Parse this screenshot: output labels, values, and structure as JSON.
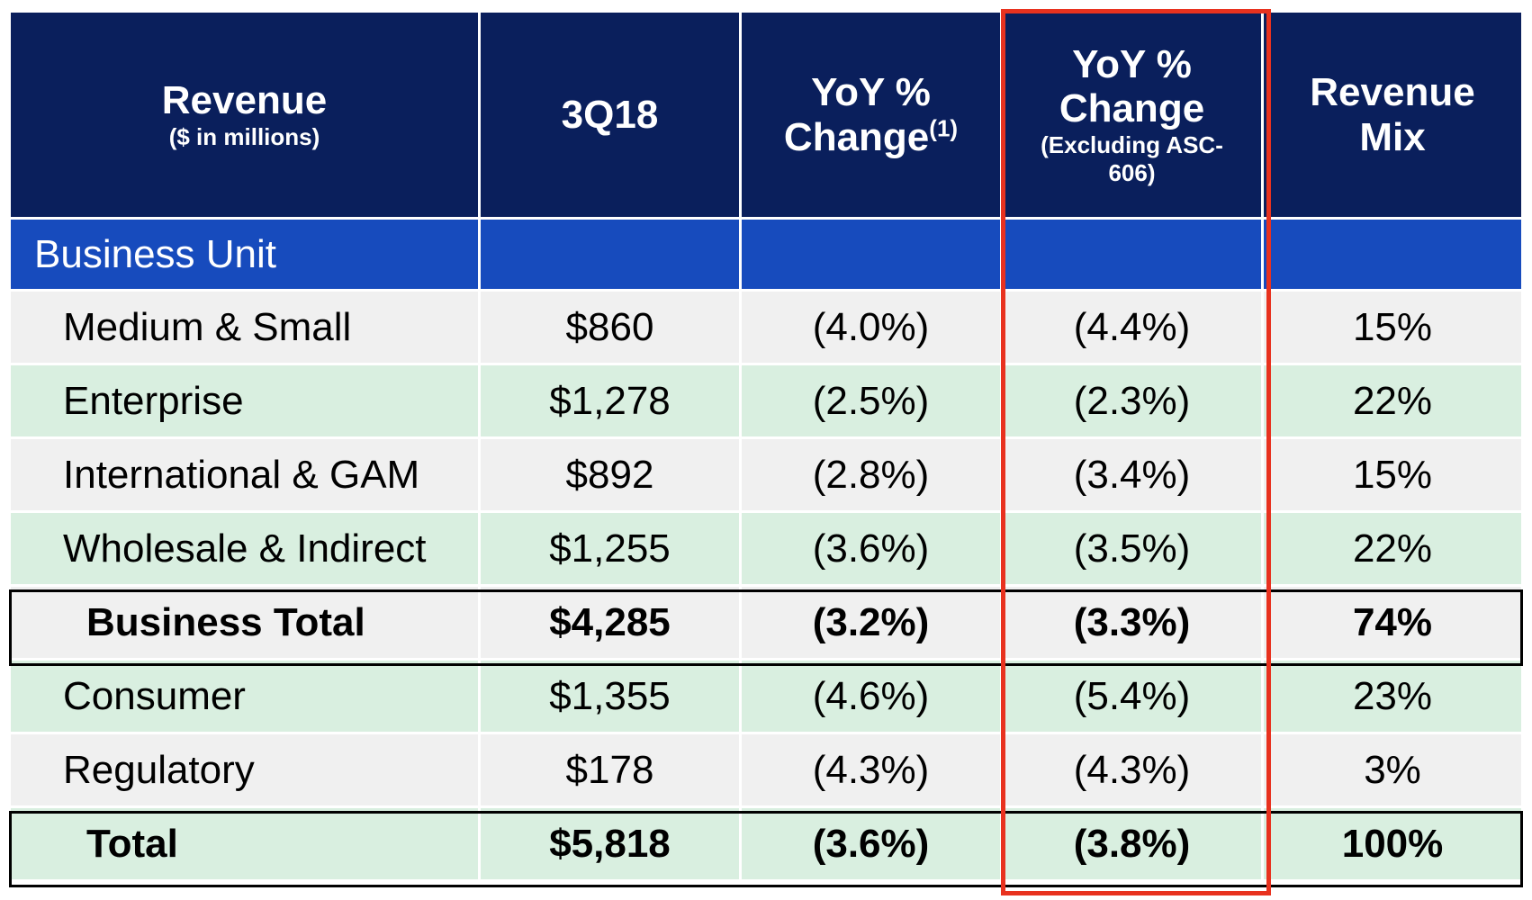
{
  "header": {
    "col1_title": "Revenue",
    "col1_sub": "($ in millions)",
    "col2": "3Q18",
    "col3_line1": "YoY %",
    "col3_line2": "Change",
    "col3_sup": "(1)",
    "col4_line1": "YoY %",
    "col4_line2": "Change",
    "col4_sub_line1": "(Excluding ASC-",
    "col4_sub_line2": "606)",
    "col5_line1": "Revenue",
    "col5_line2": "Mix"
  },
  "section_label": "Business Unit",
  "rows": [
    {
      "label": "Medium & Small",
      "q3": "$860",
      "yoy": "(4.0%)",
      "yoy_ex": "(4.4%)",
      "mix": "15%"
    },
    {
      "label": "Enterprise",
      "q3": "$1,278",
      "yoy": "(2.5%)",
      "yoy_ex": "(2.3%)",
      "mix": "22%"
    },
    {
      "label": "International & GAM",
      "q3": "$892",
      "yoy": "(2.8%)",
      "yoy_ex": "(3.4%)",
      "mix": "15%"
    },
    {
      "label": "Wholesale & Indirect",
      "q3": "$1,255",
      "yoy": "(3.6%)",
      "yoy_ex": "(3.5%)",
      "mix": "22%"
    },
    {
      "label": "Business Total",
      "q3": "$4,285",
      "yoy": "(3.2%)",
      "yoy_ex": "(3.3%)",
      "mix": "74%"
    },
    {
      "label": "Consumer",
      "q3": "$1,355",
      "yoy": "(4.6%)",
      "yoy_ex": "(5.4%)",
      "mix": "23%"
    },
    {
      "label": "Regulatory",
      "q3": "$178",
      "yoy": "(4.3%)",
      "yoy_ex": "(4.3%)",
      "mix": "3%"
    },
    {
      "label": "Total",
      "q3": "$5,818",
      "yoy": "(3.6%)",
      "yoy_ex": "(3.8%)",
      "mix": "100%"
    }
  ],
  "colors": {
    "header_bg": "#0a1f5c",
    "section_bg": "#174bbd",
    "row_gray": "#f0f0f0",
    "row_green": "#d9efe0",
    "highlight_border": "#e8321f"
  }
}
